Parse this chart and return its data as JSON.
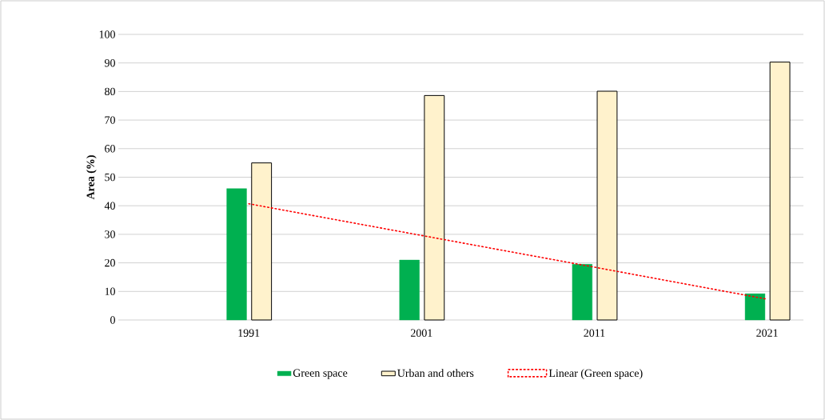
{
  "chart_data": {
    "type": "bar",
    "ylabel": "Area (%)",
    "categories": [
      "1991",
      "2001",
      "2011",
      "2021"
    ],
    "series": [
      {
        "name": "Green space",
        "color": "#00b050",
        "values": [
          46,
          21,
          19.5,
          9.2
        ]
      },
      {
        "name": "Urban and others",
        "color": "#fff2cc",
        "values": [
          55,
          78.6,
          80.1,
          90.3
        ]
      },
      {
        "name": "Linear (Green space)",
        "type": "line",
        "color": "#ff0000",
        "line_style": "dotted",
        "values": [
          40.7,
          29.6,
          18.5,
          7.3
        ]
      }
    ],
    "ylim": [
      0,
      100
    ],
    "yticks": [
      0,
      10,
      20,
      30,
      40,
      50,
      60,
      70,
      80,
      90,
      100
    ],
    "grid": "y",
    "legend": "bottom",
    "marker": "none"
  }
}
